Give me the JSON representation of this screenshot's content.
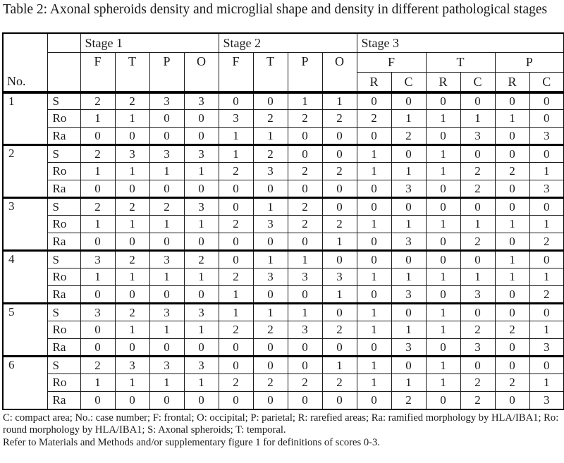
{
  "title": "Table 2: Axonal spheroids density and microglial shape and density in different pathological stages",
  "table": {
    "corner_label": "No.",
    "stage_groups": [
      {
        "label": "Stage 1",
        "regions": [
          {
            "label": "F"
          },
          {
            "label": "T"
          },
          {
            "label": "P"
          },
          {
            "label": "O"
          }
        ]
      },
      {
        "label": "Stage 2",
        "regions": [
          {
            "label": "F"
          },
          {
            "label": "T"
          },
          {
            "label": "P"
          },
          {
            "label": "O"
          }
        ]
      },
      {
        "label": "Stage 3",
        "regions": [
          {
            "label": "F",
            "sub": [
              "R",
              "C"
            ]
          },
          {
            "label": "T",
            "sub": [
              "R",
              "C"
            ]
          },
          {
            "label": "P",
            "sub": [
              "R",
              "C"
            ]
          }
        ]
      }
    ],
    "row_labels": [
      "S",
      "Ro",
      "Ra"
    ],
    "cases": [
      {
        "no": "1",
        "rows": [
          {
            "label": "S",
            "values": [
              2,
              2,
              3,
              3,
              0,
              0,
              1,
              1,
              0,
              0,
              0,
              0,
              0,
              0
            ]
          },
          {
            "label": "Ro",
            "values": [
              1,
              1,
              0,
              0,
              3,
              2,
              2,
              2,
              2,
              1,
              1,
              1,
              1,
              0
            ]
          },
          {
            "label": "Ra",
            "values": [
              0,
              0,
              0,
              0,
              1,
              1,
              0,
              0,
              0,
              2,
              0,
              3,
              0,
              3
            ]
          }
        ]
      },
      {
        "no": "2",
        "rows": [
          {
            "label": "S",
            "values": [
              2,
              3,
              3,
              3,
              1,
              2,
              0,
              0,
              1,
              0,
              1,
              0,
              0,
              0
            ]
          },
          {
            "label": "Ro",
            "values": [
              1,
              1,
              1,
              1,
              2,
              3,
              2,
              2,
              1,
              1,
              1,
              2,
              2,
              1
            ]
          },
          {
            "label": "Ra",
            "values": [
              0,
              0,
              0,
              0,
              0,
              0,
              0,
              0,
              0,
              3,
              0,
              2,
              0,
              3
            ]
          }
        ]
      },
      {
        "no": "3",
        "rows": [
          {
            "label": "S",
            "values": [
              2,
              2,
              2,
              3,
              0,
              1,
              2,
              0,
              0,
              0,
              0,
              0,
              0,
              0
            ]
          },
          {
            "label": "Ro",
            "values": [
              1,
              1,
              1,
              1,
              2,
              3,
              2,
              2,
              1,
              1,
              1,
              1,
              1,
              1
            ]
          },
          {
            "label": "Ra",
            "values": [
              0,
              0,
              0,
              0,
              0,
              0,
              0,
              1,
              0,
              3,
              0,
              2,
              0,
              2
            ]
          }
        ]
      },
      {
        "no": "4",
        "rows": [
          {
            "label": "S",
            "values": [
              3,
              2,
              3,
              2,
              0,
              1,
              1,
              0,
              0,
              0,
              0,
              0,
              1,
              0
            ]
          },
          {
            "label": "Ro",
            "values": [
              1,
              1,
              1,
              1,
              2,
              3,
              3,
              3,
              1,
              1,
              1,
              1,
              1,
              1
            ]
          },
          {
            "label": "Ra",
            "values": [
              0,
              0,
              0,
              0,
              1,
              0,
              0,
              1,
              0,
              3,
              0,
              3,
              0,
              2
            ]
          }
        ]
      },
      {
        "no": "5",
        "rows": [
          {
            "label": "S",
            "values": [
              3,
              2,
              3,
              3,
              1,
              1,
              1,
              0,
              1,
              0,
              1,
              0,
              0,
              0
            ]
          },
          {
            "label": "Ro",
            "values": [
              0,
              1,
              1,
              1,
              2,
              2,
              3,
              2,
              1,
              1,
              1,
              2,
              2,
              1
            ]
          },
          {
            "label": "Ra",
            "values": [
              0,
              0,
              0,
              0,
              0,
              0,
              0,
              0,
              0,
              3,
              0,
              3,
              0,
              3
            ]
          }
        ]
      },
      {
        "no": "6",
        "rows": [
          {
            "label": "S",
            "values": [
              2,
              3,
              3,
              3,
              0,
              0,
              0,
              1,
              1,
              0,
              1,
              0,
              0,
              0
            ]
          },
          {
            "label": "Ro",
            "values": [
              1,
              1,
              1,
              1,
              2,
              2,
              2,
              2,
              1,
              1,
              1,
              2,
              2,
              1
            ]
          },
          {
            "label": "Ra",
            "values": [
              0,
              0,
              0,
              0,
              0,
              0,
              0,
              0,
              0,
              2,
              0,
              2,
              0,
              3
            ]
          }
        ]
      }
    ]
  },
  "footnotes": [
    "C: compact area; No.: case number; F: frontal; O: occipital; P: parietal; R: rarefied areas; Ra: ramified morphology by HLA/IBA1; Ro: round morphology by HLA/IBA1; S: Axonal spheroids; T: temporal.",
    "Refer to Materials and Methods and/or supplementary figure 1 for definitions of scores 0-3."
  ]
}
